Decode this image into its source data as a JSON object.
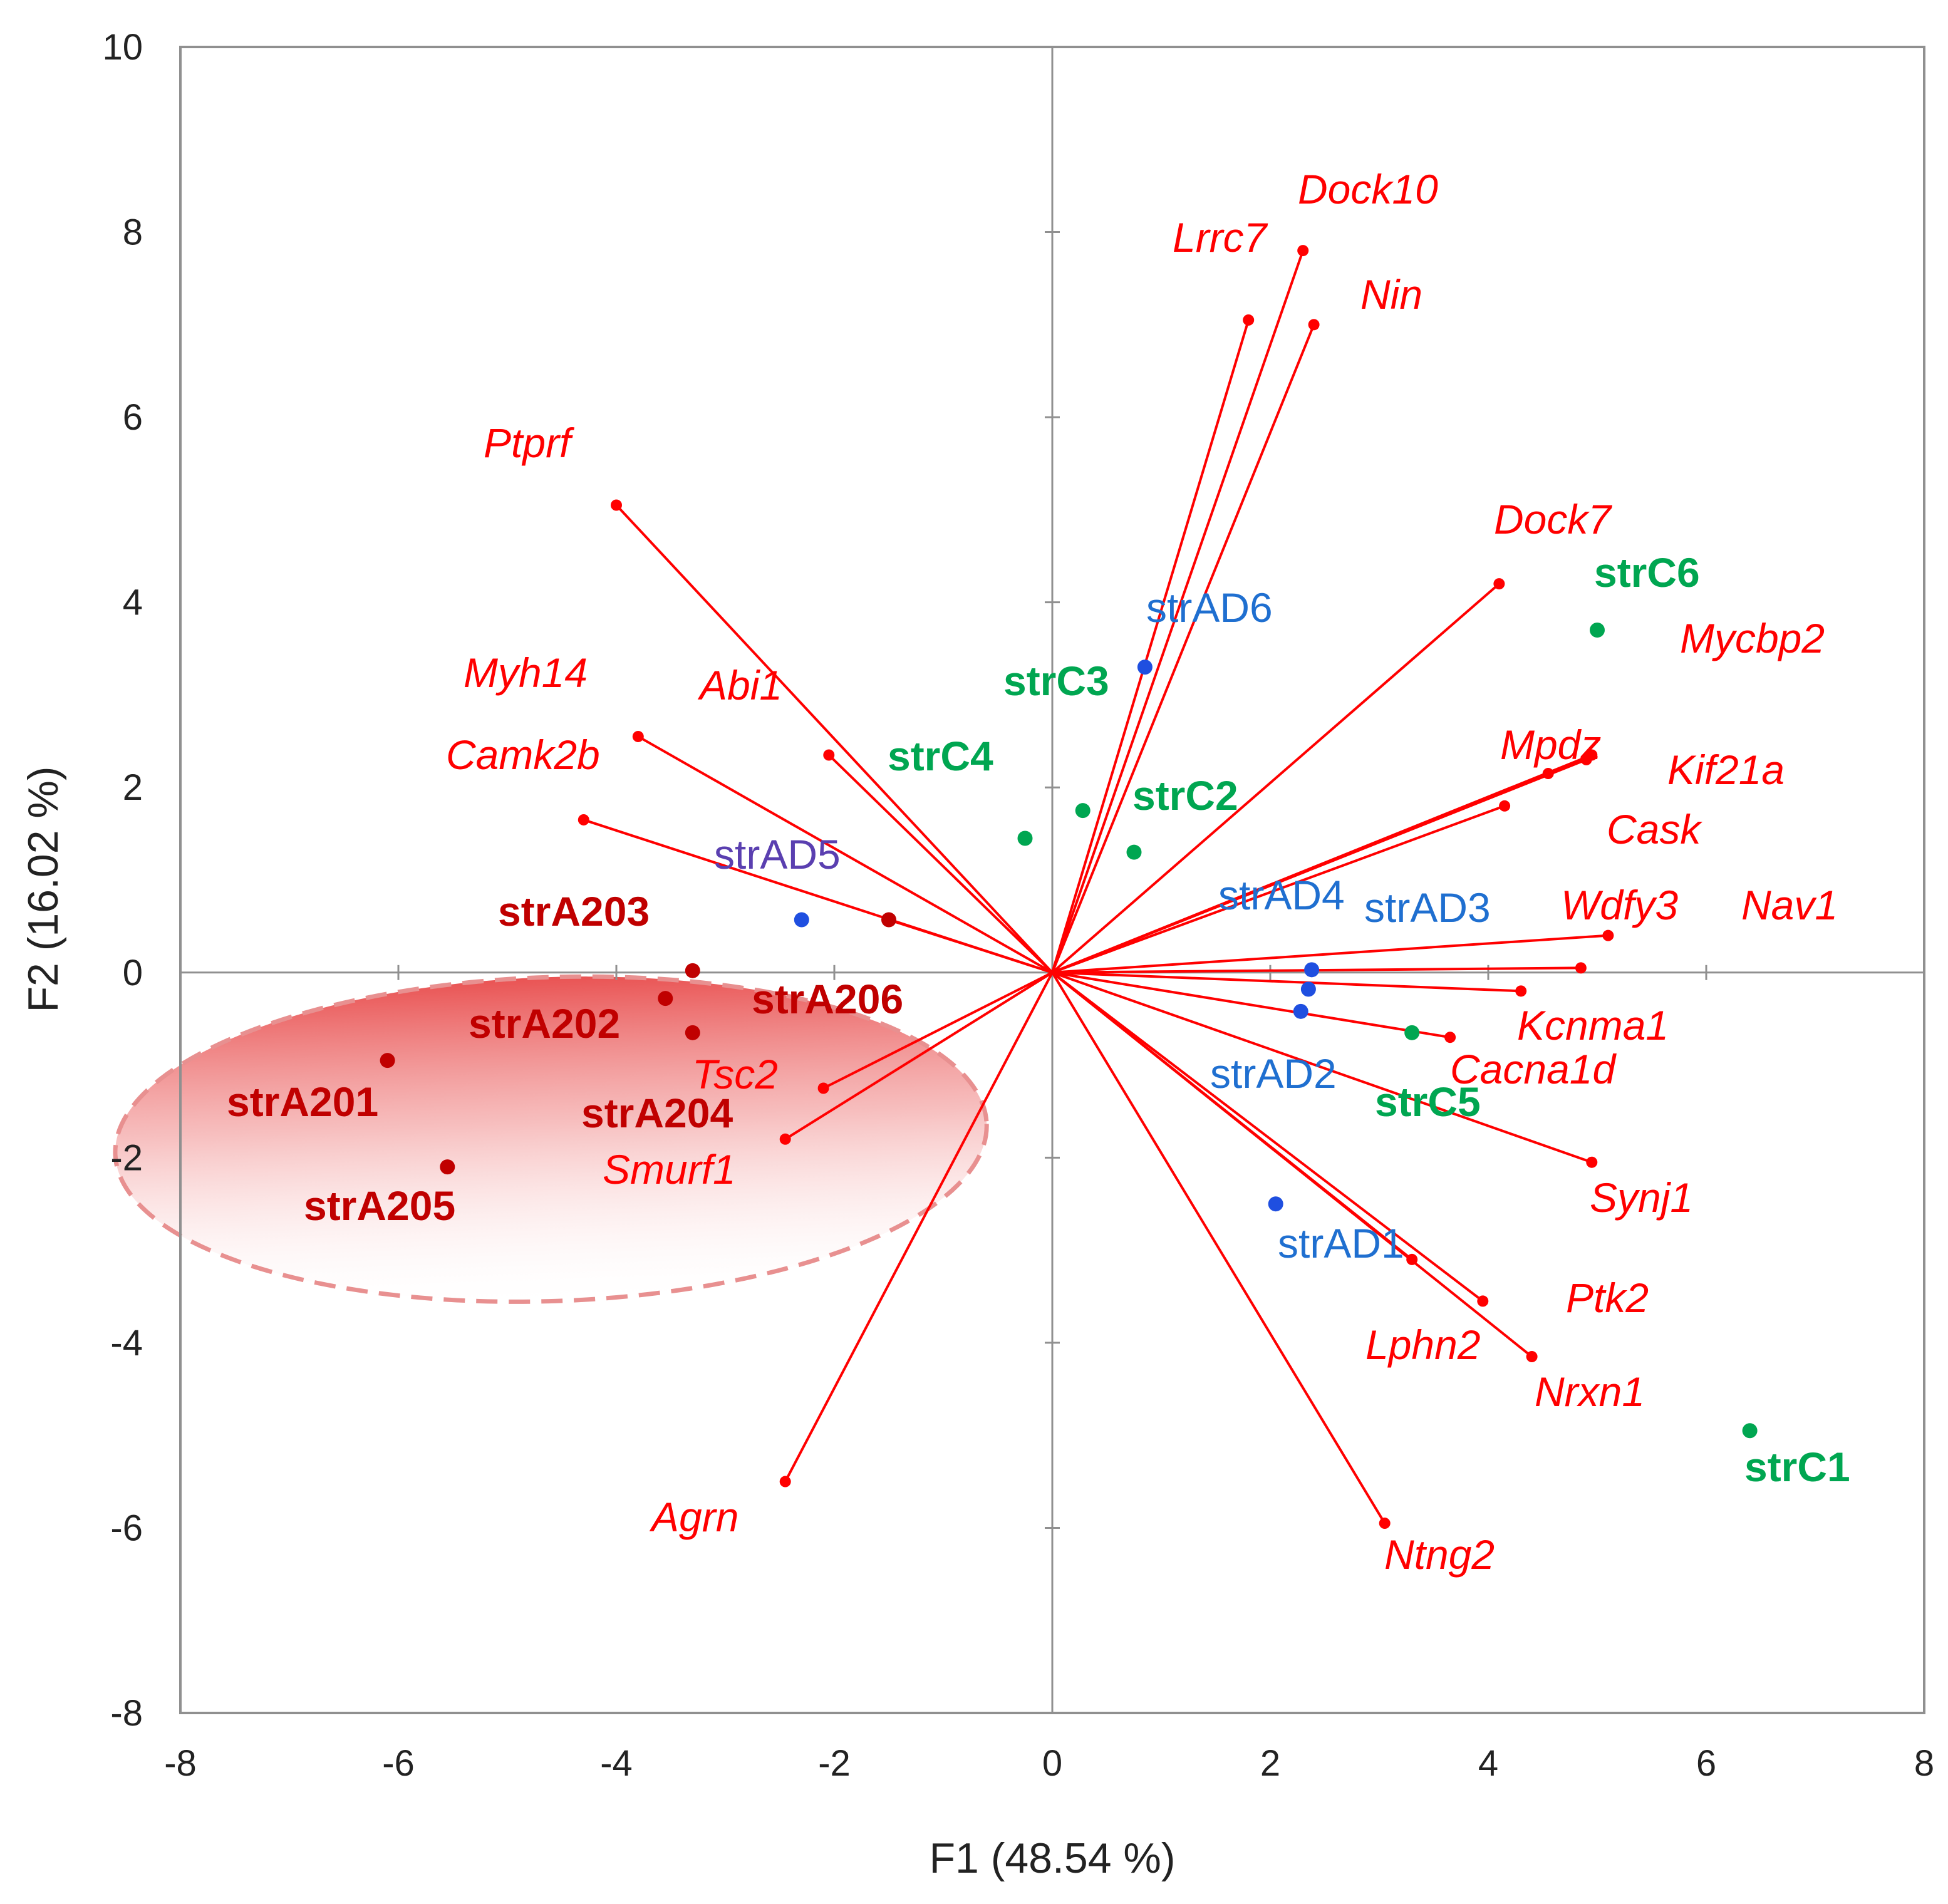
{
  "chart_data": {
    "type": "scatter",
    "subtype": "pca-biplot",
    "xlabel": "F1 (48.54 %)",
    "ylabel": "F2 (16.02 %)",
    "xlim": [
      -8,
      8
    ],
    "ylim": [
      -8,
      10
    ],
    "xticks": [
      -8,
      -6,
      -4,
      -2,
      0,
      2,
      4,
      6,
      8
    ],
    "yticks": [
      -8,
      -6,
      -4,
      -2,
      0,
      2,
      4,
      6,
      8,
      10
    ],
    "colors": {
      "variables": "#ff0000",
      "strA2": "#c00000",
      "strC": "#00a651",
      "strAD": "#1f4fe0",
      "strAD_label": "#1f6fd0",
      "ellipse_fill": "#e87070",
      "ellipse_stroke": "#e89090",
      "axis": "#909090"
    },
    "variables": [
      {
        "name": "Dock10",
        "x": 2.3,
        "y": 7.8
      },
      {
        "name": "Lrrc7",
        "x": 1.8,
        "y": 7.05
      },
      {
        "name": "Nin",
        "x": 2.4,
        "y": 7.0
      },
      {
        "name": "Ptprf",
        "x": -4.0,
        "y": 5.05
      },
      {
        "name": "Dock7",
        "x": 4.1,
        "y": 4.2
      },
      {
        "name": "Myh14",
        "x": -3.8,
        "y": 2.55
      },
      {
        "name": "Abi1",
        "x": -2.05,
        "y": 2.35
      },
      {
        "name": "Camk2b",
        "x": -4.3,
        "y": 1.65
      },
      {
        "name": "Mycbp2",
        "x": 4.95,
        "y": 2.35
      },
      {
        "name": "Mpdz",
        "x": 4.55,
        "y": 2.15
      },
      {
        "name": "Kif21a",
        "x": 4.9,
        "y": 2.3
      },
      {
        "name": "Cask",
        "x": 4.15,
        "y": 1.8
      },
      {
        "name": "Nav1",
        "x": 5.1,
        "y": 0.4
      },
      {
        "name": "Wdfy3",
        "x": 4.85,
        "y": 0.05
      },
      {
        "name": "Kcnma1",
        "x": 4.3,
        "y": -0.2
      },
      {
        "name": "Cacna1d",
        "x": 3.65,
        "y": -0.7
      },
      {
        "name": "Synj1",
        "x": 4.95,
        "y": -2.05
      },
      {
        "name": "Ptk2",
        "x": 3.95,
        "y": -3.55
      },
      {
        "name": "Lphn2",
        "x": 3.3,
        "y": -3.1
      },
      {
        "name": "Nrxn1",
        "x": 4.4,
        "y": -4.15
      },
      {
        "name": "Ntng2",
        "x": 3.05,
        "y": -5.95
      },
      {
        "name": "Tsc2",
        "x": -2.1,
        "y": -1.25
      },
      {
        "name": "Smurf1",
        "x": -2.45,
        "y": -1.8
      },
      {
        "name": "Agrn",
        "x": -2.45,
        "y": -5.5
      },
      {
        "name": "",
        "x": -1.5,
        "y": 0.57
      }
    ],
    "observations": [
      {
        "name": "strA201",
        "group": "strA2",
        "x": -6.1,
        "y": -0.95
      },
      {
        "name": "strA202",
        "group": "strA2",
        "x": -3.55,
        "y": -0.28
      },
      {
        "name": "strA203",
        "group": "strA2",
        "x": -3.3,
        "y": 0.02
      },
      {
        "name": "strA204",
        "group": "strA2",
        "x": -3.3,
        "y": -0.65
      },
      {
        "name": "strA205",
        "group": "strA2",
        "x": -5.55,
        "y": -2.1
      },
      {
        "name": "strA206",
        "group": "strA2",
        "x": -1.5,
        "y": 0.57
      },
      {
        "name": "strC1",
        "group": "strC",
        "x": 6.4,
        "y": -4.95
      },
      {
        "name": "strC2",
        "group": "strC",
        "x": 0.75,
        "y": 1.3
      },
      {
        "name": "strC3",
        "group": "strC",
        "x": 0.28,
        "y": 1.75
      },
      {
        "name": "strC4",
        "group": "strC",
        "x": -0.25,
        "y": 1.45
      },
      {
        "name": "strC5",
        "group": "strC",
        "x": 3.3,
        "y": -0.65
      },
      {
        "name": "strC6",
        "group": "strC",
        "x": 5.0,
        "y": 3.7
      },
      {
        "name": "strAD1",
        "group": "strAD",
        "x": 2.05,
        "y": -2.5
      },
      {
        "name": "strAD2",
        "group": "strAD",
        "x": 2.28,
        "y": -0.42
      },
      {
        "name": "strAD3",
        "group": "strAD",
        "x": 2.35,
        "y": -0.18
      },
      {
        "name": "strAD4",
        "group": "strAD",
        "x": 2.38,
        "y": 0.03
      },
      {
        "name": "strAD5",
        "group": "strAD",
        "x": -2.3,
        "y": 0.57
      },
      {
        "name": "strAD6",
        "group": "strAD",
        "x": 0.85,
        "y": 3.3
      }
    ],
    "ellipse": {
      "cx": -4.6,
      "cy": -1.8,
      "rx": 4.0,
      "ry": 1.75,
      "rotation_deg": -2
    }
  }
}
